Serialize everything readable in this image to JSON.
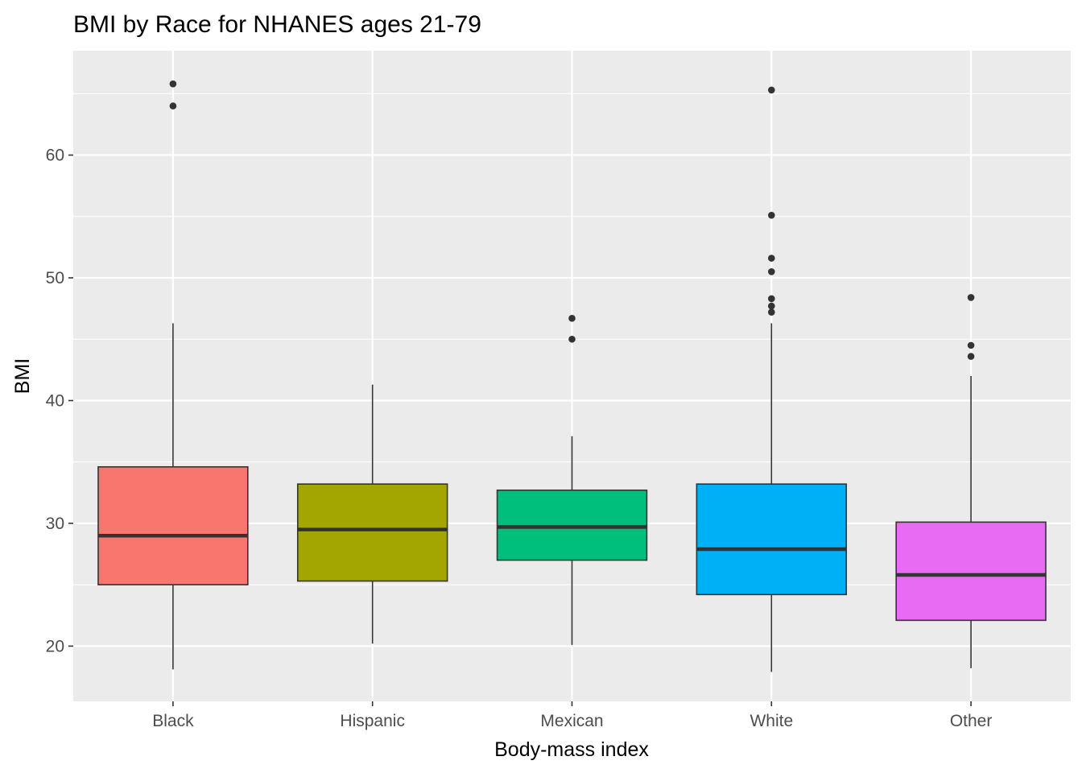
{
  "chart_data": {
    "type": "box",
    "title": "BMI by Race for NHANES ages 21-79",
    "xlabel": "Body-mass index",
    "ylabel": "BMI",
    "ylim": [
      15.5,
      68.5
    ],
    "yticks": [
      20,
      30,
      40,
      50,
      60
    ],
    "ytick_labels": [
      "20",
      "30",
      "40",
      "50",
      "60"
    ],
    "grid": true,
    "legend": "none",
    "categories": [
      "Black",
      "Hispanic",
      "Mexican",
      "White",
      "Other"
    ],
    "boxes": [
      {
        "category": "Black",
        "color": "#F8766D",
        "whisker_low": 18.1,
        "q1": 25.0,
        "median": 29.0,
        "q3": 34.6,
        "whisker_high": 46.3,
        "outliers": [
          64.0,
          65.8
        ]
      },
      {
        "category": "Hispanic",
        "color": "#A3A500",
        "whisker_low": 20.2,
        "q1": 25.3,
        "median": 29.5,
        "q3": 33.2,
        "whisker_high": 41.3,
        "outliers": []
      },
      {
        "category": "Mexican",
        "color": "#00BF7D",
        "whisker_low": 20.1,
        "q1": 27.0,
        "median": 29.7,
        "q3": 32.7,
        "whisker_high": 37.1,
        "outliers": [
          45.0,
          46.7
        ]
      },
      {
        "category": "White",
        "color": "#00B0F6",
        "whisker_low": 17.9,
        "q1": 24.2,
        "median": 27.9,
        "q3": 33.2,
        "whisker_high": 46.3,
        "outliers": [
          47.2,
          47.7,
          48.3,
          50.5,
          51.6,
          55.1,
          65.3
        ]
      },
      {
        "category": "Other",
        "color": "#E76BF3",
        "whisker_low": 18.2,
        "q1": 22.1,
        "median": 25.8,
        "q3": 30.1,
        "whisker_high": 42.0,
        "outliers": [
          43.6,
          44.5,
          48.4
        ]
      }
    ],
    "colors": {
      "panel": "#EBEBEB",
      "grid": "#FFFFFF",
      "outline": "#333333"
    }
  }
}
